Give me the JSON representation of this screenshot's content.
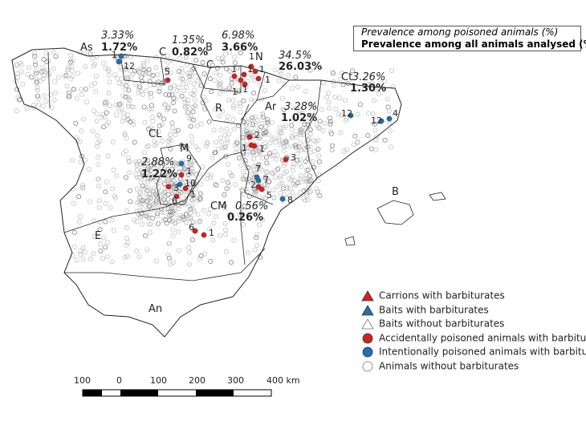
{
  "legend_box": {
    "line1": "Prevalence among poisoned animals (%)",
    "line2": "Prevalence among all animals analysed (%)"
  },
  "regions": [
    {
      "code": "As",
      "poisoned": "3.33%",
      "all": "1.72%"
    },
    {
      "code": "C",
      "poisoned": "1.35%",
      "all": "0.82%"
    },
    {
      "code": "B",
      "poisoned": "6.98%",
      "all": "3.66%"
    },
    {
      "code": "C"
    },
    {
      "code": "N",
      "poisoned": "34.5%",
      "all": "26.03%"
    },
    {
      "code": "Ct",
      "poisoned": "3.26%",
      "all": "1.30%"
    },
    {
      "code": "R"
    },
    {
      "code": "Ar",
      "poisoned": "3.28%",
      "all": "1.02%"
    },
    {
      "code": "CL"
    },
    {
      "code": "M",
      "poisoned": "2.88%",
      "all": "1.22%"
    },
    {
      "code": "CM",
      "poisoned": "0.56%",
      "all": "0.26%"
    },
    {
      "code": "E"
    },
    {
      "code": "An"
    },
    {
      "code": "B"
    }
  ],
  "markers": [
    {
      "type": "intentional",
      "count": "1"
    },
    {
      "type": "intentional",
      "count": "12"
    },
    {
      "type": "accidental",
      "count": "5"
    },
    {
      "type": "accidental",
      "count": "1"
    },
    {
      "type": "accidental",
      "count": "1"
    },
    {
      "type": "accidental",
      "count": "1"
    },
    {
      "type": "accidental",
      "count": "1"
    },
    {
      "type": "accidental",
      "count": "1"
    },
    {
      "type": "accidental",
      "count": "1"
    },
    {
      "type": "accidental",
      "count": "1"
    },
    {
      "type": "intentional",
      "count": "12"
    },
    {
      "type": "intentional",
      "count": "12"
    },
    {
      "type": "intentional",
      "count": "4"
    },
    {
      "type": "accidental",
      "count": "2"
    },
    {
      "type": "accidental",
      "count": "1"
    },
    {
      "type": "accidental",
      "count": "1"
    },
    {
      "type": "accidental",
      "count": "3"
    },
    {
      "type": "intentional",
      "count": "9"
    },
    {
      "type": "accidental",
      "count": "1"
    },
    {
      "type": "intentional",
      "count": "10"
    },
    {
      "type": "accidental",
      "count": "1"
    },
    {
      "type": "accidental",
      "count": "3"
    },
    {
      "type": "accidental",
      "count": "6"
    },
    {
      "type": "intentional",
      "count": "7"
    },
    {
      "type": "intentional",
      "count": "7"
    },
    {
      "type": "accidental",
      "count": "2"
    },
    {
      "type": "accidental",
      "count": "5"
    },
    {
      "type": "intentional",
      "count": "8"
    },
    {
      "type": "accidental",
      "count": "6"
    },
    {
      "type": "accidental",
      "count": "1"
    }
  ],
  "legend": [
    {
      "label": "Carrions with barbiturates",
      "icon": "red-triangle",
      "color": "#d42020"
    },
    {
      "label": "Baits with barbiturates",
      "icon": "blue-triangle",
      "color": "#1f6fb5"
    },
    {
      "label": "Baits without barbiturates",
      "icon": "hollow-triangle",
      "color": "#999999"
    },
    {
      "label": "Accidentally poisoned animals with barbiturates",
      "icon": "red-circle",
      "color": "#d42020"
    },
    {
      "label": "Intentionally poisoned animals with barbiturates",
      "icon": "blue-circle",
      "color": "#1f6fb5"
    },
    {
      "label": "Animals without barbiturates",
      "icon": "hollow-circle",
      "color": "#999999"
    }
  ],
  "scale_bar": {
    "labels": [
      "100",
      "0",
      "100",
      "200",
      "300",
      "400 km"
    ]
  }
}
